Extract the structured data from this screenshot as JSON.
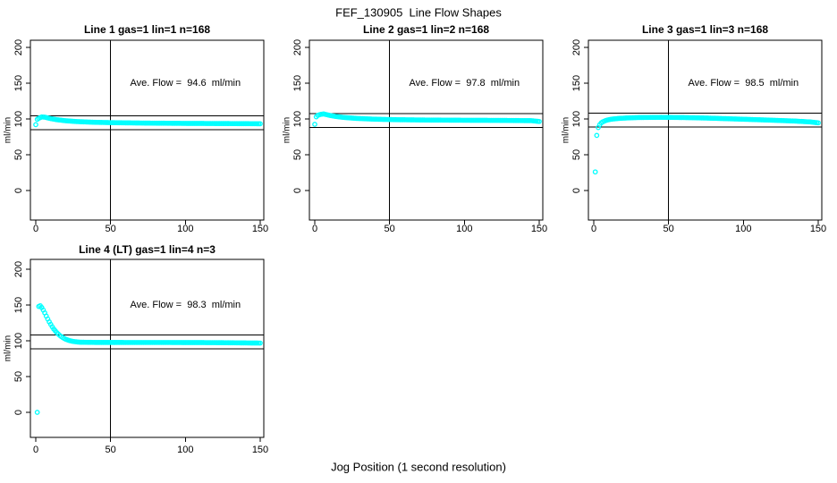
{
  "page": {
    "title": "FEF_130905  Line Flow Shapes",
    "xlabel": "Jog Position (1 second resolution)"
  },
  "chart_data": [
    {
      "type": "scatter",
      "title": "Line 1 gas=1 lin=1 n=168",
      "annotation": "Ave. Flow =  94.6  ml/min",
      "avg_flow_ml_min": 94.6,
      "n": 168,
      "ylabel": "ml/min",
      "x_ticks": [
        0,
        50,
        100,
        150
      ],
      "y_ticks": [
        0,
        50,
        100,
        150,
        200
      ],
      "xlim": [
        0,
        155
      ],
      "ylim": [
        0,
        200
      ],
      "grid": false,
      "marker": "open-circle",
      "marker_color": "#00FFFF",
      "ref_line_upper": 104.1,
      "ref_line_lower": 85.1,
      "ref_line_vertical_x": 50,
      "outliers": [
        [
          0,
          92
        ]
      ],
      "knots": [
        [
          1,
          99.5
        ],
        [
          2,
          101
        ],
        [
          4,
          102.8
        ],
        [
          6,
          102.5
        ],
        [
          8,
          101.5
        ],
        [
          10,
          100.5
        ],
        [
          14,
          99
        ],
        [
          20,
          97.5
        ],
        [
          28,
          96.3
        ],
        [
          40,
          95.3
        ],
        [
          55,
          94.7
        ],
        [
          75,
          94.2
        ],
        [
          100,
          93.8
        ],
        [
          125,
          93.6
        ],
        [
          150,
          93.3
        ]
      ],
      "x_end": 150
    },
    {
      "type": "scatter",
      "title": "Line 2 gas=1 lin=2 n=168",
      "annotation": "Ave. Flow =  97.8  ml/min",
      "avg_flow_ml_min": 97.8,
      "n": 168,
      "ylabel": "ml/min",
      "x_ticks": [
        0,
        50,
        100,
        150
      ],
      "y_ticks": [
        0,
        50,
        100,
        150,
        200
      ],
      "xlim": [
        0,
        155
      ],
      "ylim": [
        0,
        200
      ],
      "grid": false,
      "marker": "open-circle",
      "marker_color": "#00FFFF",
      "ref_line_upper": 107.6,
      "ref_line_lower": 88.0,
      "ref_line_vertical_x": 50,
      "outliers": [
        [
          0,
          92.5
        ]
      ],
      "knots": [
        [
          1,
          103
        ],
        [
          2,
          105
        ],
        [
          4,
          106.5
        ],
        [
          6,
          107
        ],
        [
          8,
          106
        ],
        [
          10,
          105
        ],
        [
          14,
          103.5
        ],
        [
          20,
          102
        ],
        [
          28,
          100.8
        ],
        [
          40,
          99.7
        ],
        [
          55,
          99
        ],
        [
          75,
          98.5
        ],
        [
          100,
          98.2
        ],
        [
          125,
          98
        ],
        [
          145,
          97.6
        ],
        [
          148,
          96.9
        ],
        [
          150,
          96.5
        ]
      ],
      "x_end": 150
    },
    {
      "type": "scatter",
      "title": "Line 3 gas=1 lin=3 n=168",
      "annotation": "Ave. Flow =  98.5  ml/min",
      "avg_flow_ml_min": 98.5,
      "n": 168,
      "ylabel": "ml/min",
      "x_ticks": [
        0,
        50,
        100,
        150
      ],
      "y_ticks": [
        0,
        50,
        100,
        150,
        200
      ],
      "xlim": [
        0,
        155
      ],
      "ylim": [
        0,
        200
      ],
      "grid": false,
      "marker": "open-circle",
      "marker_color": "#00FFFF",
      "ref_line_upper": 108.4,
      "ref_line_lower": 88.7,
      "ref_line_vertical_x": 50,
      "outliers": [
        [
          1,
          26
        ],
        [
          2,
          77
        ]
      ],
      "knots": [
        [
          3,
          88
        ],
        [
          4,
          92
        ],
        [
          5,
          94.5
        ],
        [
          6,
          96
        ],
        [
          8,
          97.8
        ],
        [
          10,
          99
        ],
        [
          13,
          100
        ],
        [
          17,
          100.8
        ],
        [
          22,
          101.4
        ],
        [
          30,
          102
        ],
        [
          45,
          102.3
        ],
        [
          60,
          102
        ],
        [
          75,
          101.3
        ],
        [
          90,
          100.3
        ],
        [
          105,
          99.3
        ],
        [
          120,
          98.2
        ],
        [
          135,
          97
        ],
        [
          145,
          95.8
        ],
        [
          148,
          95
        ],
        [
          150,
          94.6
        ]
      ],
      "x_end": 150
    },
    {
      "type": "scatter",
      "title": "Line 4 (LT) gas=1 lin=4 n=3",
      "annotation": "Ave. Flow =  98.3  ml/min",
      "avg_flow_ml_min": 98.3,
      "n": 3,
      "ylabel": "ml/min",
      "x_ticks": [
        0,
        50,
        100,
        150
      ],
      "y_ticks": [
        0,
        50,
        100,
        150,
        200
      ],
      "xlim": [
        0,
        155
      ],
      "ylim": [
        0,
        200
      ],
      "grid": false,
      "marker": "open-circle",
      "marker_color": "#00FFFF",
      "ref_line_upper": 108.1,
      "ref_line_lower": 88.5,
      "ref_line_vertical_x": 50,
      "outliers": [
        [
          1,
          0
        ]
      ],
      "knots": [
        [
          2,
          148
        ],
        [
          3,
          149
        ],
        [
          4,
          146.5
        ],
        [
          5,
          143
        ],
        [
          6,
          139
        ],
        [
          7,
          134.5
        ],
        [
          8,
          130.5
        ],
        [
          9,
          126.5
        ],
        [
          10,
          123
        ],
        [
          11,
          119.5
        ],
        [
          12,
          116.5
        ],
        [
          13,
          114
        ],
        [
          14,
          111.5
        ],
        [
          15,
          109.5
        ],
        [
          16,
          107.5
        ],
        [
          17,
          106
        ],
        [
          18,
          104.5
        ],
        [
          19,
          103.3
        ],
        [
          20,
          102.2
        ],
        [
          22,
          100.6
        ],
        [
          24,
          99.5
        ],
        [
          26,
          98.8
        ],
        [
          28,
          98.3
        ],
        [
          30,
          98
        ],
        [
          40,
          97.7
        ],
        [
          60,
          97.6
        ],
        [
          90,
          97.6
        ],
        [
          120,
          97.4
        ],
        [
          150,
          96.8
        ]
      ],
      "x_end": 150
    }
  ]
}
